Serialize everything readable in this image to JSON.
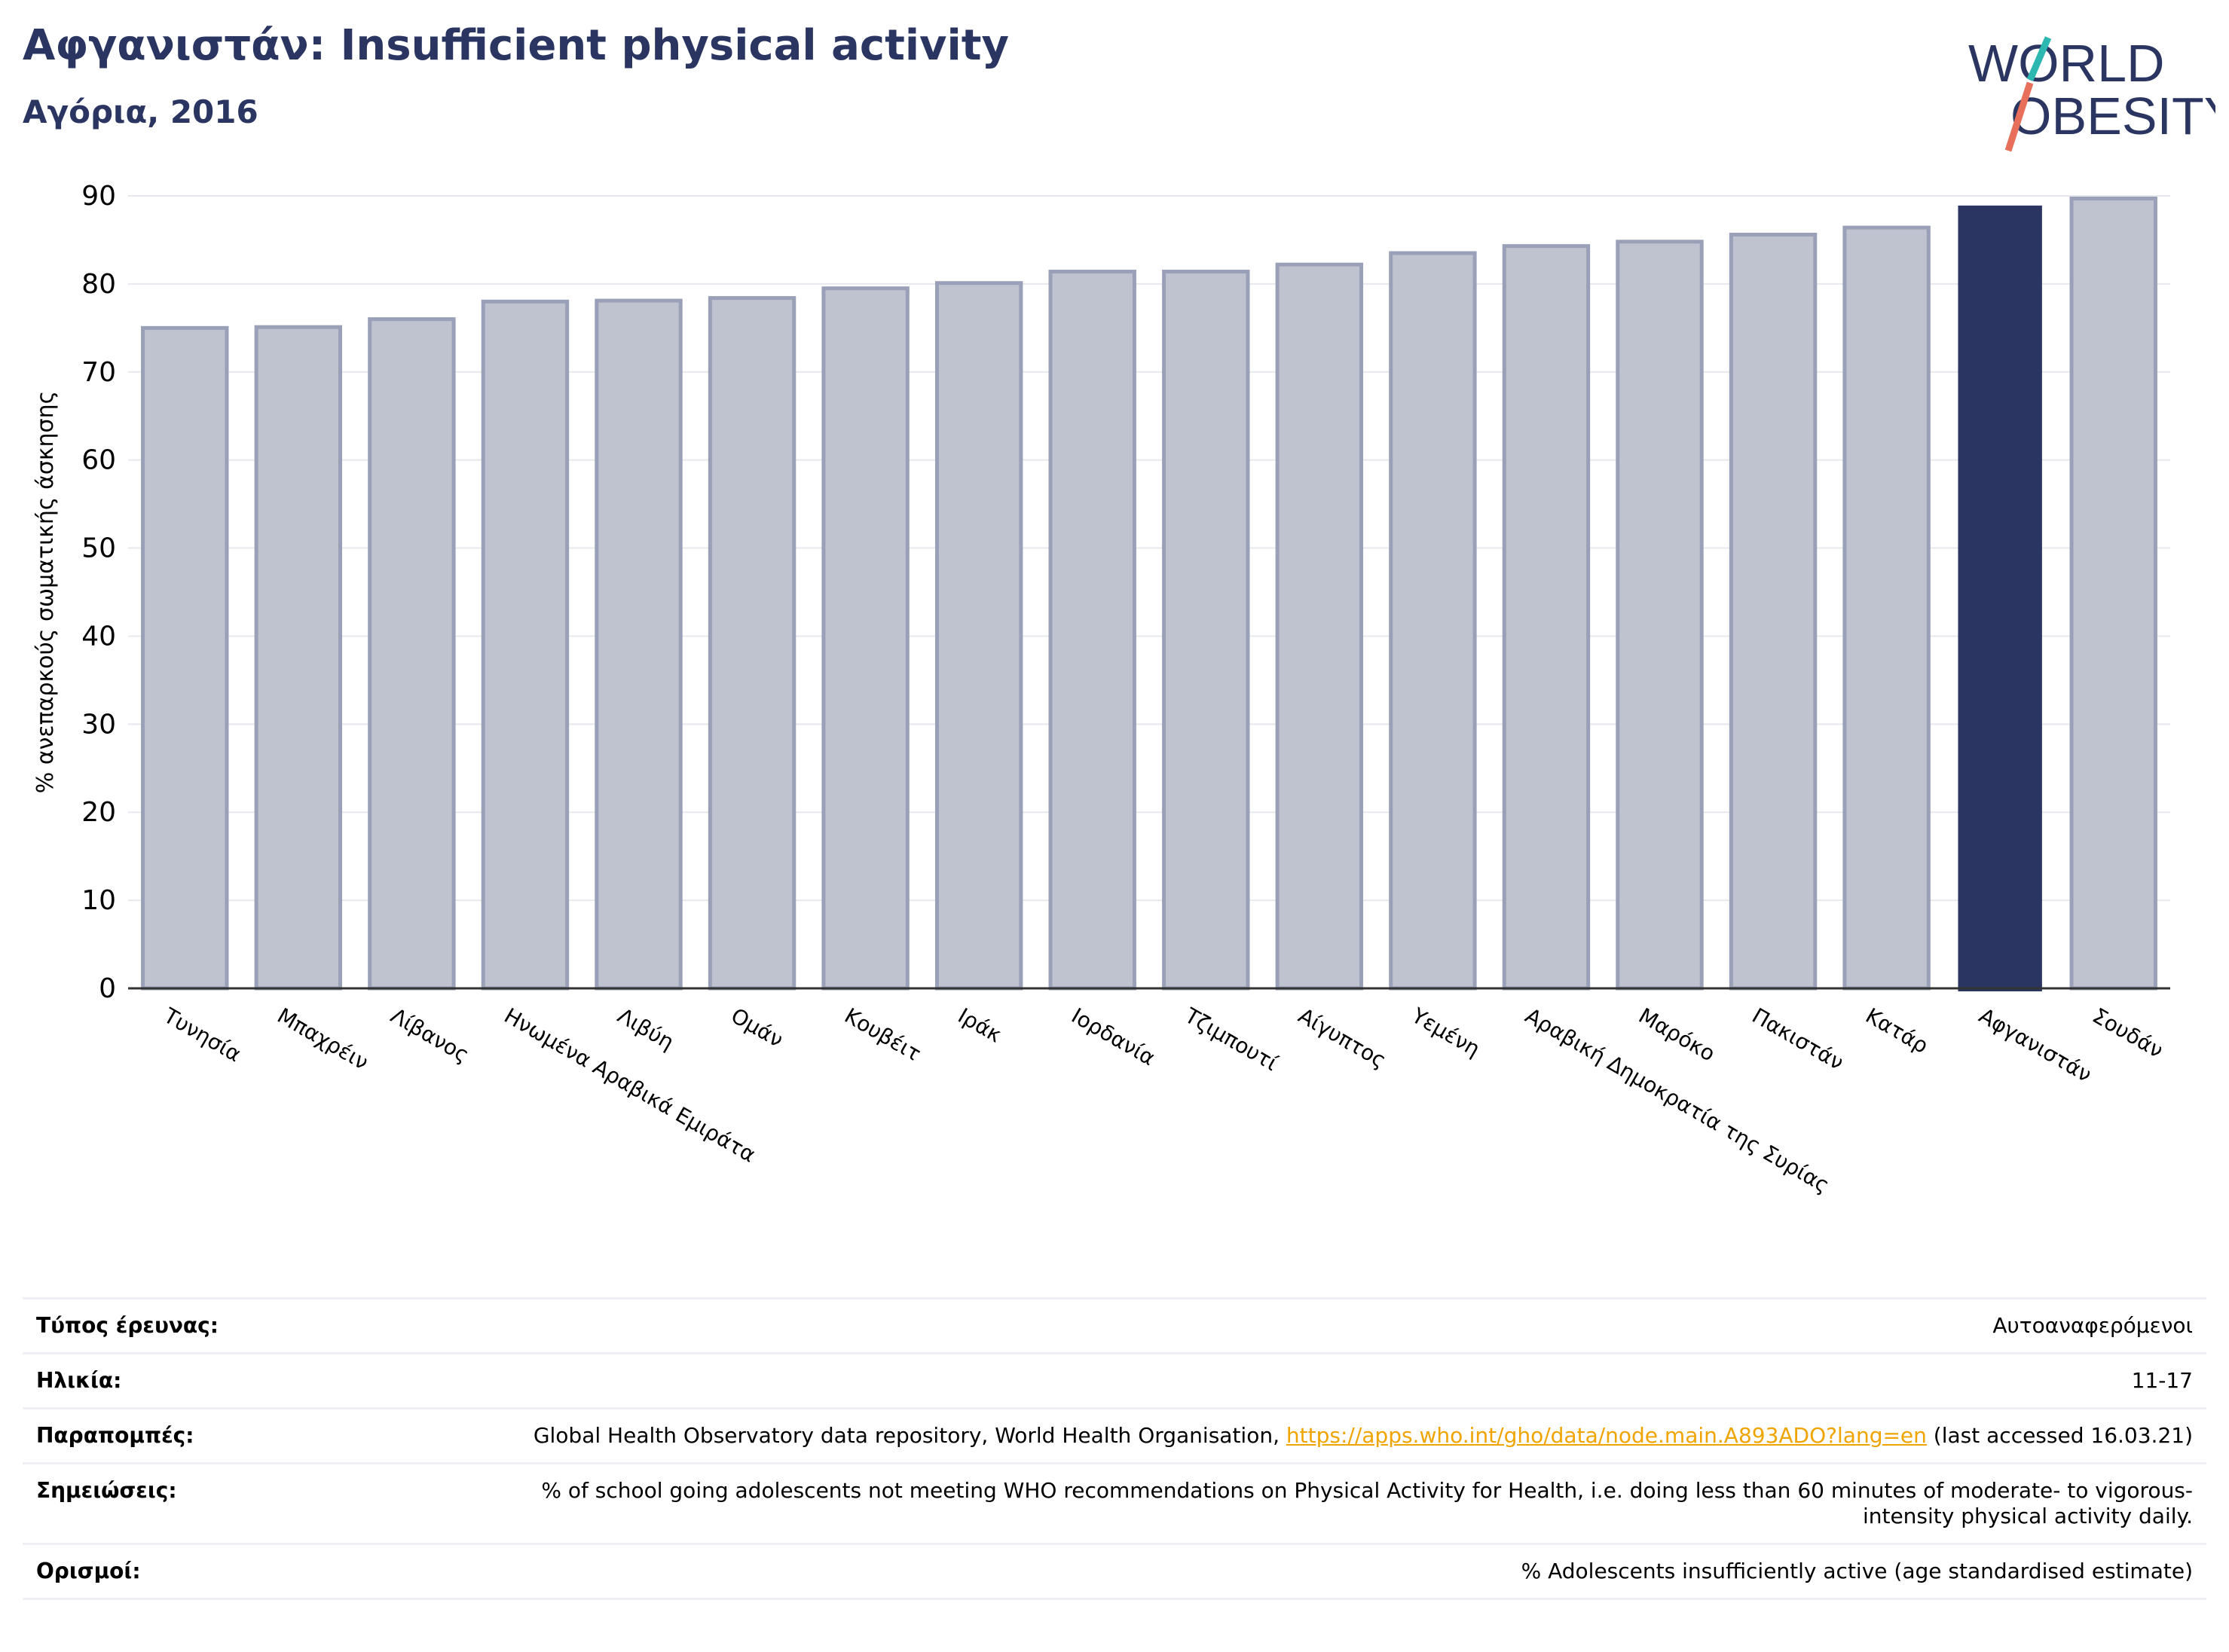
{
  "header": {
    "title": "Αφγανιστάν: Insufficient physical activity",
    "subtitle": "Αγόρια, 2016"
  },
  "logo": {
    "line1": "WORLD",
    "line2": "OBESITY"
  },
  "colors": {
    "highlight": "#2a3561",
    "bar": "#bfc2cf",
    "bar_border": "#9aa0b7",
    "title": "#2a3561",
    "link": "#f0a400"
  },
  "chart_data": {
    "type": "bar",
    "ylabel": "% ανεπαρκούς σωματικής άσκησης",
    "xlabel": "",
    "ylim": [
      0,
      90
    ],
    "yticks": [
      0,
      10,
      20,
      30,
      40,
      50,
      60,
      70,
      80,
      90
    ],
    "grid": true,
    "categories": [
      "Τυνησία",
      "Μπαχρέιν",
      "Λίβανος",
      "Ηνωμένα Αραβικά Εμιράτα",
      "Λιβύη",
      "Ομάν",
      "Κουβέιτ",
      "Ιράκ",
      "Ιορδανία",
      "Τζιμπουτί",
      "Αίγυπτος",
      "Υεμένη",
      "Αραβική Δημοκρατία της Συρίας",
      "Μαρόκο",
      "Πακιστάν",
      "Κατάρ",
      "Αφγανιστάν",
      "Σουδάν"
    ],
    "values": [
      75.0,
      75.1,
      76.0,
      78.0,
      78.1,
      78.4,
      79.5,
      80.1,
      81.4,
      81.4,
      82.2,
      83.5,
      84.3,
      84.8,
      85.6,
      86.4,
      88.9,
      89.7
    ],
    "highlight": "Αφγανιστάν"
  },
  "info": [
    {
      "label": "Τύπος έρευνας:",
      "value": "Αυτοαναφερόμενοι"
    },
    {
      "label": "Ηλικία:",
      "value": "11-17"
    },
    {
      "label": "Παραπομπές:",
      "value": "Global Health Observatory data repository, World Health Organisation, ",
      "link": "https://apps.who.int/gho/data/node.main.A893ADO?lang=en",
      "value_after": " (last accessed 16.03.21)"
    },
    {
      "label": "Σημειώσεις:",
      "value": "% of school going adolescents not meeting WHO recommendations on Physical Activity for Health, i.e. doing less than 60 minutes of moderate- to vigorous-intensity physical activity daily."
    },
    {
      "label": "Ορισμοί:",
      "value": "% Adolescents insufficiently active (age standardised estimate)"
    }
  ]
}
